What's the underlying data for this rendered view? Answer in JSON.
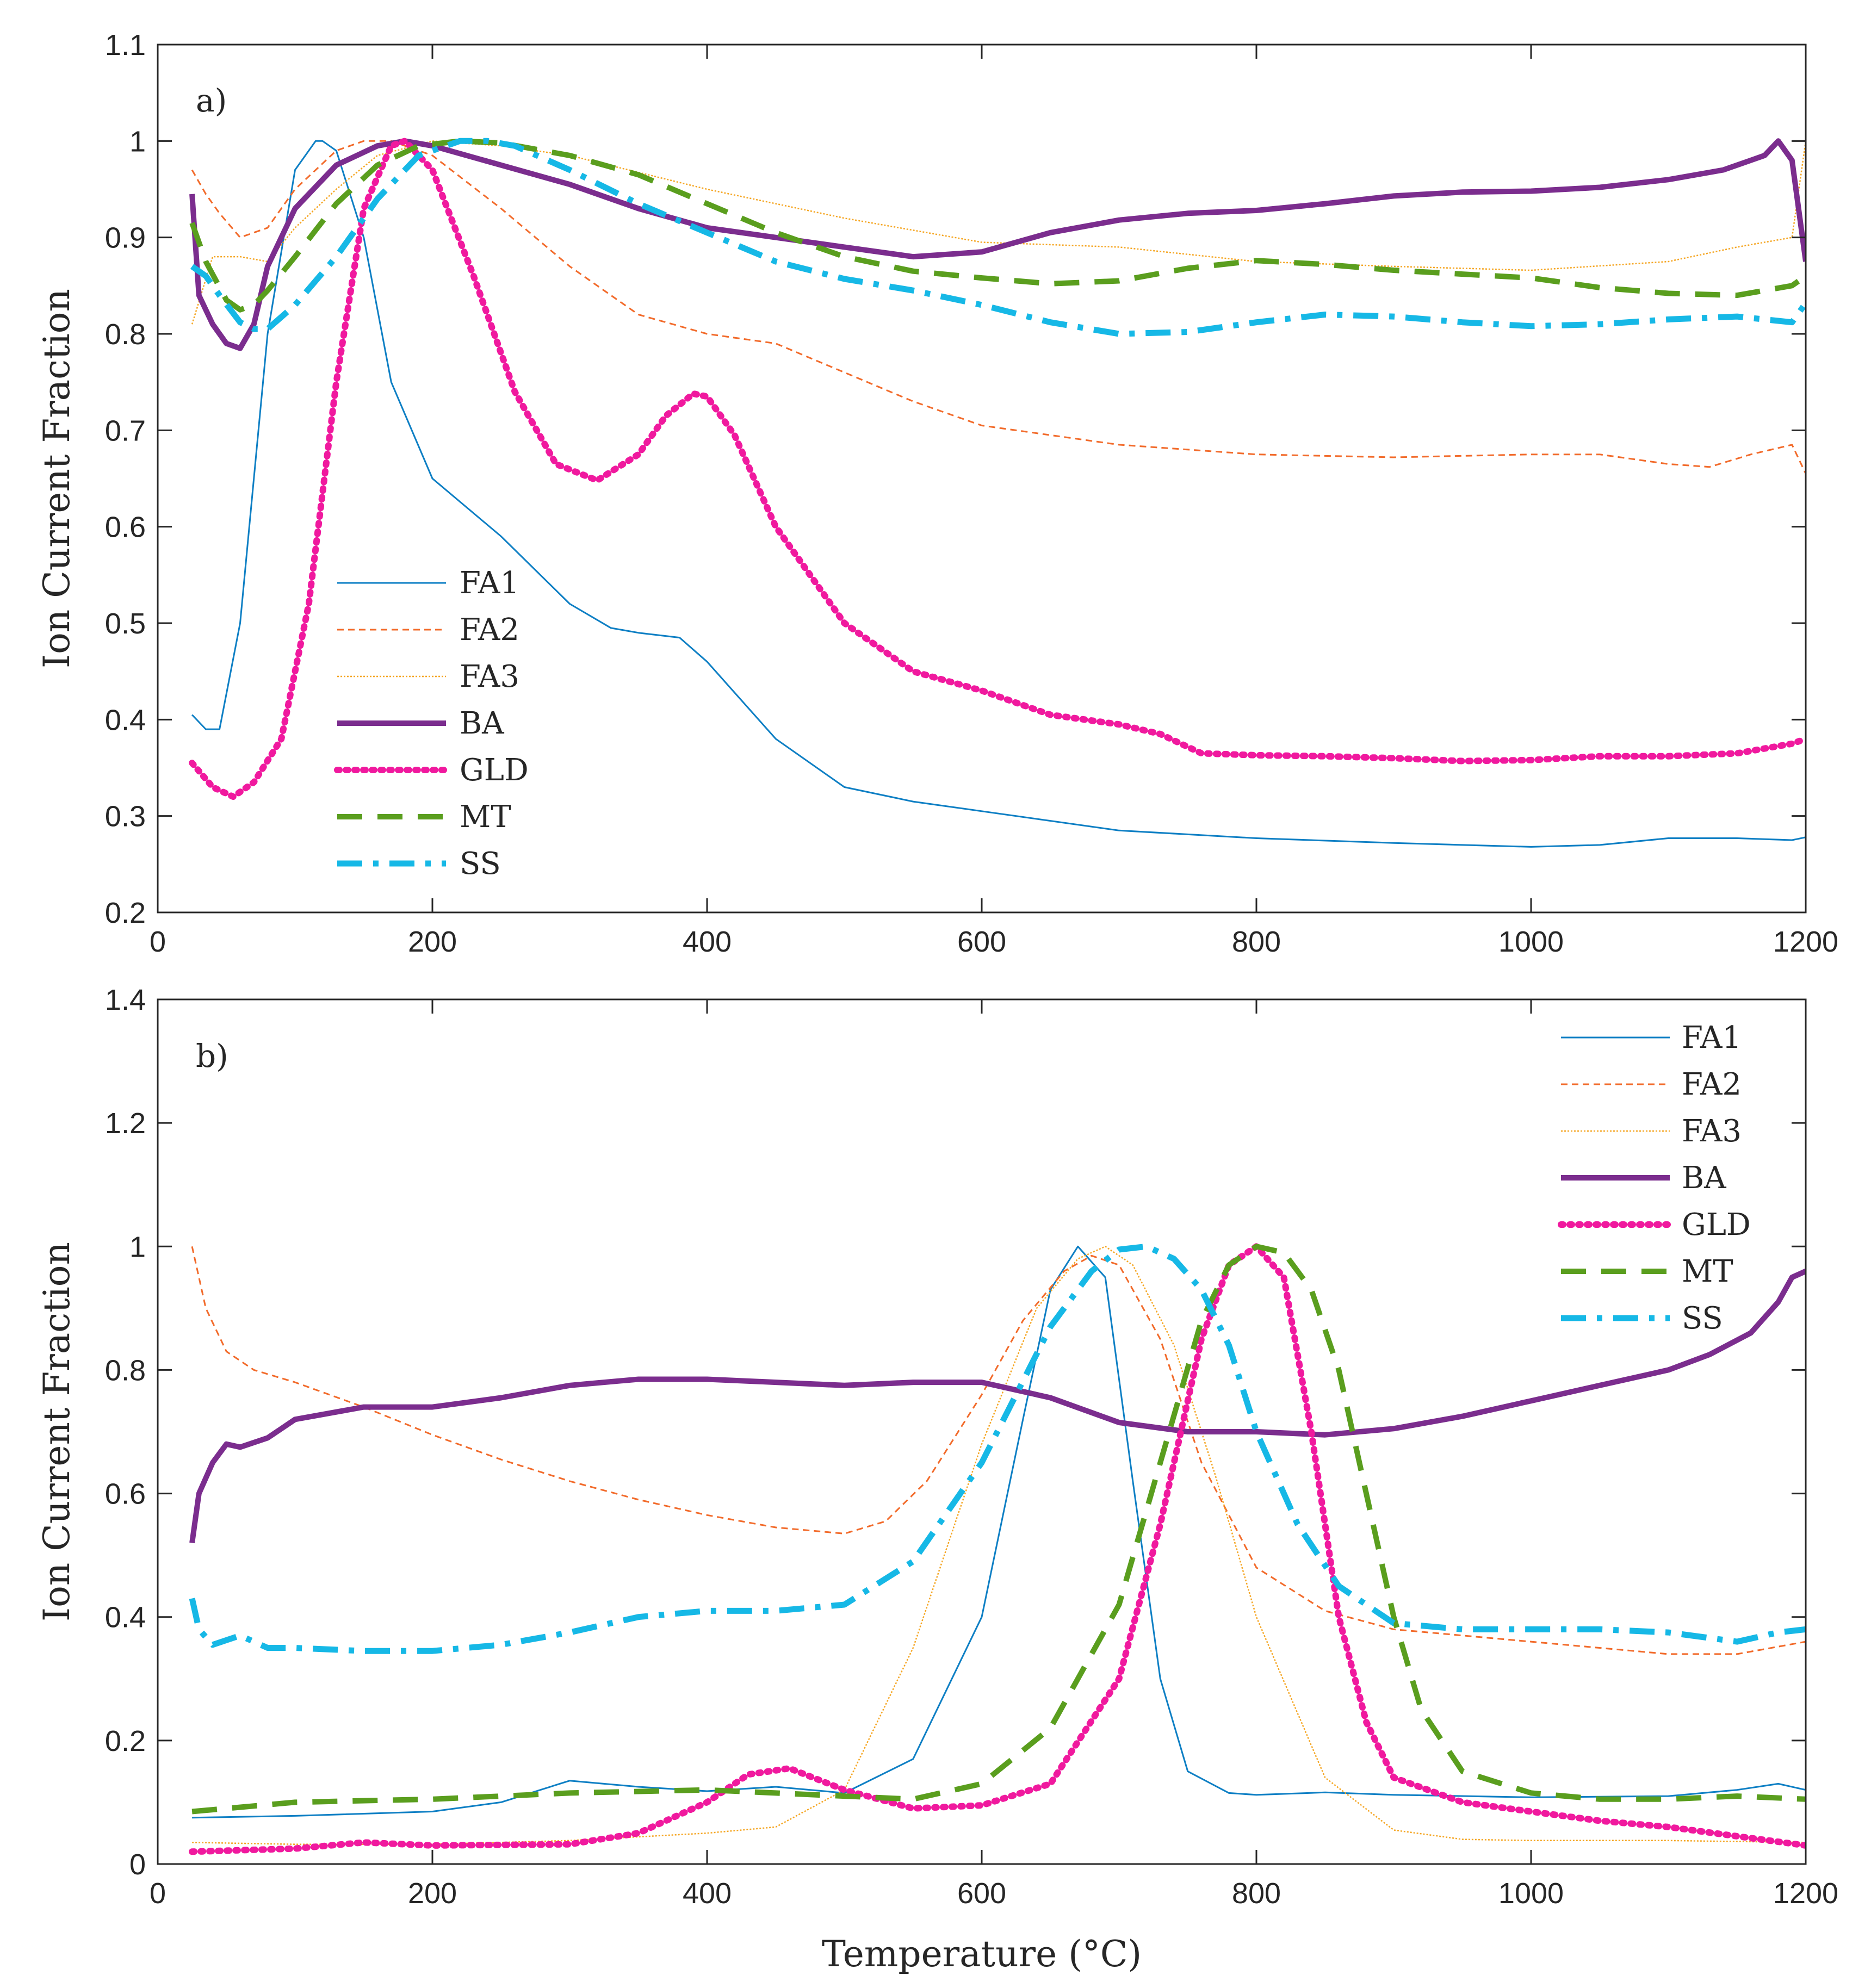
{
  "chart_data": [
    {
      "type": "line",
      "panel_label": "a)",
      "xlabel": "",
      "ylabel": "Ion Current Fraction",
      "xlim": [
        0,
        1200
      ],
      "ylim": [
        0.2,
        1.1
      ],
      "xticks": [
        0,
        200,
        400,
        600,
        800,
        1000,
        1200
      ],
      "yticks": [
        0.2,
        0.3,
        0.4,
        0.5,
        0.6,
        0.7,
        0.8,
        0.9,
        1,
        1.1
      ],
      "xtick_labels": [
        "0",
        "200",
        "400",
        "600",
        "800",
        "1000",
        "1200"
      ],
      "ytick_labels": [
        "0.2",
        "0.3",
        "0.4",
        "0.5",
        "0.6",
        "0.7",
        "0.8",
        "0.9",
        "1",
        "1.1"
      ],
      "legend_position": "middle-left",
      "series": [
        {
          "name": "FA1",
          "color": "#0e7fc4",
          "style": "solid-thin",
          "x": [
            25,
            35,
            45,
            60,
            80,
            100,
            115,
            120,
            130,
            150,
            170,
            200,
            250,
            300,
            330,
            350,
            380,
            400,
            450,
            500,
            550,
            600,
            700,
            800,
            900,
            1000,
            1050,
            1100,
            1150,
            1190,
            1200
          ],
          "y": [
            0.405,
            0.39,
            0.39,
            0.5,
            0.8,
            0.97,
            1.0,
            1.0,
            0.99,
            0.9,
            0.75,
            0.65,
            0.59,
            0.52,
            0.495,
            0.49,
            0.485,
            0.46,
            0.38,
            0.33,
            0.315,
            0.305,
            0.285,
            0.277,
            0.272,
            0.268,
            0.27,
            0.277,
            0.277,
            0.275,
            0.278
          ]
        },
        {
          "name": "FA2",
          "color": "#f26b2b",
          "style": "dashed-thin",
          "x": [
            25,
            35,
            45,
            60,
            80,
            100,
            130,
            150,
            170,
            200,
            250,
            300,
            350,
            400,
            450,
            500,
            550,
            600,
            700,
            800,
            900,
            1000,
            1050,
            1100,
            1130,
            1160,
            1190,
            1200
          ],
          "y": [
            0.97,
            0.945,
            0.925,
            0.9,
            0.91,
            0.95,
            0.99,
            1.0,
            1.0,
            0.985,
            0.93,
            0.87,
            0.82,
            0.8,
            0.79,
            0.76,
            0.73,
            0.705,
            0.685,
            0.675,
            0.672,
            0.675,
            0.675,
            0.665,
            0.662,
            0.675,
            0.685,
            0.655
          ]
        },
        {
          "name": "FA3",
          "color": "#f5a623",
          "style": "dotted-thin",
          "x": [
            25,
            40,
            60,
            80,
            100,
            130,
            160,
            200,
            250,
            300,
            400,
            500,
            600,
            700,
            800,
            900,
            1000,
            1100,
            1150,
            1190,
            1200
          ],
          "y": [
            0.81,
            0.88,
            0.88,
            0.875,
            0.91,
            0.95,
            0.985,
            1.0,
            0.995,
            0.985,
            0.95,
            0.92,
            0.895,
            0.89,
            0.875,
            0.87,
            0.866,
            0.875,
            0.89,
            0.9,
            1.0
          ]
        },
        {
          "name": "BA",
          "color": "#7b2d8e",
          "style": "solid-thick",
          "x": [
            25,
            30,
            40,
            50,
            60,
            70,
            80,
            100,
            130,
            160,
            180,
            200,
            250,
            300,
            350,
            400,
            450,
            500,
            550,
            600,
            650,
            700,
            750,
            800,
            850,
            900,
            950,
            1000,
            1050,
            1100,
            1140,
            1160,
            1170,
            1180,
            1190,
            1200
          ],
          "y": [
            0.945,
            0.84,
            0.81,
            0.79,
            0.785,
            0.81,
            0.87,
            0.93,
            0.975,
            0.995,
            1.0,
            0.995,
            0.975,
            0.955,
            0.93,
            0.91,
            0.9,
            0.89,
            0.88,
            0.885,
            0.905,
            0.918,
            0.925,
            0.928,
            0.935,
            0.943,
            0.947,
            0.948,
            0.952,
            0.96,
            0.97,
            0.98,
            0.985,
            1.0,
            0.98,
            0.875
          ]
        },
        {
          "name": "GLD",
          "color": "#f0199e",
          "style": "dotted-thick",
          "x": [
            25,
            40,
            55,
            70,
            90,
            110,
            130,
            150,
            170,
            180,
            200,
            230,
            260,
            290,
            320,
            350,
            370,
            390,
            400,
            420,
            450,
            500,
            550,
            600,
            650,
            700,
            730,
            760,
            800,
            850,
            900,
            950,
            1000,
            1050,
            1100,
            1150,
            1190,
            1200
          ],
          "y": [
            0.355,
            0.33,
            0.32,
            0.335,
            0.38,
            0.52,
            0.75,
            0.93,
            0.995,
            1.0,
            0.97,
            0.86,
            0.74,
            0.665,
            0.648,
            0.675,
            0.715,
            0.738,
            0.735,
            0.695,
            0.6,
            0.5,
            0.45,
            0.43,
            0.405,
            0.395,
            0.385,
            0.365,
            0.363,
            0.362,
            0.36,
            0.357,
            0.358,
            0.362,
            0.362,
            0.365,
            0.375,
            0.38
          ]
        },
        {
          "name": "MT",
          "color": "#5a9e1e",
          "style": "dashed-thick",
          "x": [
            25,
            35,
            50,
            60,
            70,
            80,
            100,
            130,
            160,
            190,
            220,
            250,
            300,
            350,
            400,
            450,
            500,
            550,
            600,
            650,
            700,
            750,
            800,
            850,
            900,
            950,
            1000,
            1050,
            1100,
            1150,
            1170,
            1190,
            1200
          ],
          "y": [
            0.915,
            0.875,
            0.835,
            0.825,
            0.83,
            0.845,
            0.88,
            0.935,
            0.975,
            0.995,
            1.0,
            0.998,
            0.985,
            0.965,
            0.935,
            0.905,
            0.88,
            0.865,
            0.858,
            0.852,
            0.855,
            0.868,
            0.876,
            0.872,
            0.866,
            0.862,
            0.858,
            0.848,
            0.842,
            0.84,
            0.845,
            0.85,
            0.86
          ]
        },
        {
          "name": "SS",
          "color": "#16b8e6",
          "style": "dashdot-thick",
          "x": [
            25,
            35,
            45,
            60,
            70,
            80,
            100,
            130,
            160,
            190,
            220,
            240,
            260,
            300,
            350,
            400,
            450,
            500,
            550,
            600,
            650,
            700,
            750,
            800,
            850,
            900,
            950,
            1000,
            1050,
            1100,
            1150,
            1170,
            1190,
            1200
          ],
          "y": [
            0.87,
            0.86,
            0.84,
            0.812,
            0.805,
            0.805,
            0.83,
            0.88,
            0.94,
            0.985,
            1.0,
            1.0,
            0.995,
            0.97,
            0.935,
            0.905,
            0.875,
            0.857,
            0.845,
            0.83,
            0.812,
            0.8,
            0.802,
            0.812,
            0.82,
            0.818,
            0.812,
            0.808,
            0.81,
            0.815,
            0.818,
            0.815,
            0.812,
            0.832
          ]
        }
      ]
    },
    {
      "type": "line",
      "panel_label": "b)",
      "xlabel": "Temperature (°C)",
      "ylabel": "Ion Current Fraction",
      "xlim": [
        0,
        1200
      ],
      "ylim": [
        0,
        1.4
      ],
      "xticks": [
        0,
        200,
        400,
        600,
        800,
        1000,
        1200
      ],
      "yticks": [
        0,
        0.2,
        0.4,
        0.6,
        0.8,
        1,
        1.2,
        1.4
      ],
      "xtick_labels": [
        "0",
        "200",
        "400",
        "600",
        "800",
        "1000",
        "1200"
      ],
      "ytick_labels": [
        "0",
        "0.2",
        "0.4",
        "0.6",
        "0.8",
        "1",
        "1.2",
        "1.4"
      ],
      "legend_position": "top-right",
      "series": [
        {
          "name": "FA1",
          "color": "#0e7fc4",
          "style": "solid-thin",
          "x": [
            25,
            100,
            200,
            250,
            300,
            350,
            400,
            450,
            500,
            550,
            600,
            630,
            650,
            670,
            690,
            710,
            730,
            750,
            780,
            800,
            850,
            900,
            1000,
            1100,
            1150,
            1180,
            1200
          ],
          "y": [
            0.075,
            0.078,
            0.085,
            0.1,
            0.135,
            0.125,
            0.118,
            0.125,
            0.115,
            0.17,
            0.4,
            0.72,
            0.93,
            1.0,
            0.95,
            0.62,
            0.3,
            0.15,
            0.115,
            0.112,
            0.116,
            0.112,
            0.108,
            0.11,
            0.12,
            0.13,
            0.12
          ]
        },
        {
          "name": "FA2",
          "color": "#f26b2b",
          "style": "dashed-thin",
          "x": [
            25,
            35,
            50,
            70,
            100,
            150,
            200,
            250,
            300,
            350,
            400,
            450,
            500,
            530,
            560,
            600,
            630,
            660,
            680,
            700,
            730,
            760,
            800,
            850,
            900,
            1000,
            1100,
            1150,
            1200
          ],
          "y": [
            1.0,
            0.9,
            0.83,
            0.8,
            0.78,
            0.74,
            0.695,
            0.655,
            0.62,
            0.59,
            0.565,
            0.545,
            0.535,
            0.555,
            0.62,
            0.76,
            0.88,
            0.96,
            0.985,
            0.97,
            0.85,
            0.65,
            0.48,
            0.41,
            0.38,
            0.36,
            0.34,
            0.34,
            0.36
          ]
        },
        {
          "name": "FA3",
          "color": "#f5a623",
          "style": "dotted-thin",
          "x": [
            25,
            100,
            200,
            300,
            400,
            450,
            500,
            550,
            600,
            640,
            670,
            690,
            710,
            740,
            770,
            800,
            850,
            900,
            950,
            1000,
            1100,
            1200
          ],
          "y": [
            0.035,
            0.032,
            0.032,
            0.038,
            0.05,
            0.06,
            0.12,
            0.35,
            0.68,
            0.9,
            0.98,
            1.0,
            0.97,
            0.84,
            0.63,
            0.4,
            0.14,
            0.055,
            0.04,
            0.038,
            0.038,
            0.035
          ]
        },
        {
          "name": "BA",
          "color": "#7b2d8e",
          "style": "solid-thick",
          "x": [
            25,
            30,
            40,
            50,
            60,
            80,
            100,
            150,
            200,
            250,
            300,
            350,
            400,
            450,
            500,
            550,
            600,
            650,
            700,
            750,
            800,
            850,
            900,
            950,
            1000,
            1050,
            1100,
            1130,
            1160,
            1180,
            1190,
            1200
          ],
          "y": [
            0.52,
            0.6,
            0.65,
            0.68,
            0.675,
            0.69,
            0.72,
            0.74,
            0.74,
            0.755,
            0.775,
            0.785,
            0.785,
            0.78,
            0.775,
            0.78,
            0.78,
            0.755,
            0.715,
            0.7,
            0.7,
            0.695,
            0.705,
            0.725,
            0.75,
            0.775,
            0.8,
            0.825,
            0.86,
            0.91,
            0.95,
            0.96
          ]
        },
        {
          "name": "GLD",
          "color": "#f0199e",
          "style": "dotted-thick",
          "x": [
            25,
            100,
            150,
            200,
            300,
            350,
            400,
            430,
            460,
            500,
            550,
            600,
            650,
            700,
            730,
            760,
            780,
            800,
            820,
            840,
            860,
            880,
            900,
            950,
            1000,
            1050,
            1100,
            1150,
            1200
          ],
          "y": [
            0.02,
            0.025,
            0.035,
            0.03,
            0.032,
            0.05,
            0.1,
            0.145,
            0.155,
            0.12,
            0.09,
            0.095,
            0.13,
            0.3,
            0.55,
            0.85,
            0.97,
            1.0,
            0.95,
            0.7,
            0.4,
            0.23,
            0.14,
            0.1,
            0.085,
            0.07,
            0.06,
            0.045,
            0.03
          ]
        },
        {
          "name": "MT",
          "color": "#5a9e1e",
          "style": "dashed-thick",
          "x": [
            25,
            100,
            200,
            300,
            400,
            450,
            500,
            550,
            600,
            650,
            700,
            730,
            760,
            780,
            800,
            820,
            840,
            860,
            880,
            900,
            920,
            950,
            1000,
            1050,
            1100,
            1150,
            1200
          ],
          "y": [
            0.085,
            0.1,
            0.105,
            0.115,
            0.12,
            0.115,
            0.11,
            0.105,
            0.13,
            0.22,
            0.42,
            0.65,
            0.88,
            0.97,
            1.0,
            0.99,
            0.93,
            0.8,
            0.6,
            0.4,
            0.25,
            0.15,
            0.115,
            0.105,
            0.105,
            0.11,
            0.105
          ]
        },
        {
          "name": "SS",
          "color": "#16b8e6",
          "style": "dashdot-thick",
          "x": [
            25,
            30,
            40,
            60,
            80,
            100,
            150,
            200,
            250,
            300,
            350,
            400,
            450,
            500,
            550,
            600,
            650,
            680,
            700,
            720,
            740,
            760,
            780,
            800,
            830,
            860,
            900,
            950,
            1000,
            1050,
            1100,
            1150,
            1180,
            1200
          ],
          "y": [
            0.43,
            0.38,
            0.355,
            0.37,
            0.35,
            0.35,
            0.345,
            0.345,
            0.355,
            0.375,
            0.4,
            0.41,
            0.41,
            0.42,
            0.49,
            0.65,
            0.87,
            0.96,
            0.995,
            1.0,
            0.98,
            0.93,
            0.84,
            0.7,
            0.55,
            0.45,
            0.39,
            0.38,
            0.38,
            0.38,
            0.375,
            0.36,
            0.375,
            0.38
          ]
        }
      ]
    }
  ]
}
